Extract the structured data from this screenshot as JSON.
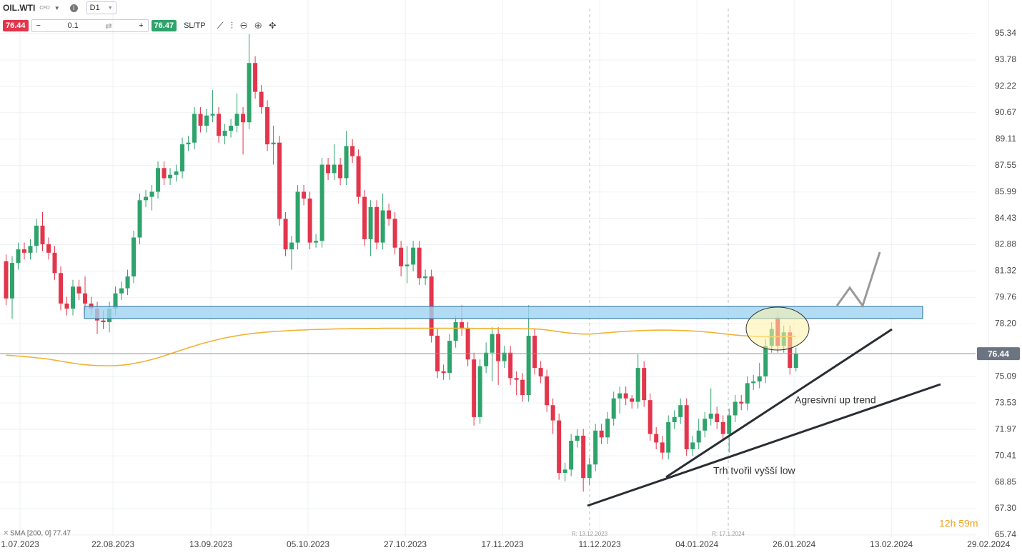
{
  "toolbar": {
    "symbol": "OIL.WTI",
    "instrument_type": "CFD",
    "timeframe": "D1",
    "sell_price": "76.44",
    "volume": "0.1",
    "buy_price": "76.47",
    "sl_tp": "SL/TP"
  },
  "chart_data": {
    "type": "candlestick",
    "candles": [
      [
        81.9,
        82.3,
        79.3,
        79.7
      ],
      [
        79.7,
        82.2,
        78.5,
        81.8
      ],
      [
        81.8,
        83.0,
        81.4,
        82.6
      ],
      [
        82.6,
        83.0,
        82.0,
        82.4
      ],
      [
        82.4,
        83.2,
        82.0,
        82.8
      ],
      [
        82.8,
        84.4,
        82.4,
        84.0
      ],
      [
        84.0,
        84.8,
        82.5,
        82.9
      ],
      [
        82.9,
        83.3,
        82.0,
        82.4
      ],
      [
        82.4,
        82.8,
        80.8,
        81.2
      ],
      [
        81.2,
        81.6,
        79.0,
        79.4
      ],
      [
        79.4,
        79.8,
        78.7,
        79.1
      ],
      [
        79.1,
        80.8,
        78.7,
        80.4
      ],
      [
        80.4,
        80.8,
        79.6,
        80.0
      ],
      [
        80.0,
        81.0,
        79.0,
        79.4
      ],
      [
        79.4,
        79.8,
        78.7,
        79.1
      ],
      [
        79.1,
        79.5,
        77.6,
        78.4
      ],
      [
        78.4,
        79.0,
        77.9,
        78.3
      ],
      [
        78.3,
        79.5,
        77.7,
        79.1
      ],
      [
        79.1,
        80.4,
        78.7,
        80.0
      ],
      [
        80.0,
        80.7,
        79.6,
        80.3
      ],
      [
        80.3,
        81.4,
        79.9,
        81.0
      ],
      [
        81.0,
        83.7,
        80.6,
        83.3
      ],
      [
        83.3,
        85.9,
        82.9,
        85.5
      ],
      [
        85.5,
        86.1,
        85.1,
        85.7
      ],
      [
        85.7,
        86.4,
        84.9,
        86.0
      ],
      [
        86.0,
        87.8,
        85.6,
        87.4
      ],
      [
        87.4,
        87.8,
        86.4,
        86.8
      ],
      [
        86.8,
        87.4,
        86.4,
        87.0
      ],
      [
        87.0,
        87.6,
        86.6,
        87.2
      ],
      [
        87.2,
        89.2,
        86.8,
        88.8
      ],
      [
        88.8,
        89.3,
        88.4,
        88.9
      ],
      [
        88.9,
        91.0,
        88.5,
        90.6
      ],
      [
        90.6,
        91.0,
        89.5,
        89.9
      ],
      [
        89.9,
        90.9,
        89.5,
        90.5
      ],
      [
        90.5,
        92.0,
        90.1,
        90.6
      ],
      [
        90.6,
        91.0,
        88.9,
        89.3
      ],
      [
        89.3,
        90.0,
        88.8,
        89.6
      ],
      [
        89.6,
        90.3,
        89.2,
        89.9
      ],
      [
        89.9,
        91.8,
        89.5,
        90.6
      ],
      [
        90.6,
        91.0,
        88.2,
        90.1
      ],
      [
        90.1,
        95.3,
        89.7,
        93.6
      ],
      [
        93.6,
        94.0,
        91.5,
        91.9
      ],
      [
        91.9,
        92.3,
        90.6,
        91.0
      ],
      [
        91.0,
        91.4,
        88.4,
        88.8
      ],
      [
        88.8,
        89.9,
        87.6,
        88.9
      ],
      [
        88.9,
        89.3,
        84.0,
        84.4
      ],
      [
        84.4,
        84.8,
        82.2,
        82.6
      ],
      [
        82.6,
        83.4,
        81.4,
        83.0
      ],
      [
        83.0,
        86.4,
        82.6,
        86.0
      ],
      [
        86.0,
        86.4,
        85.2,
        85.6
      ],
      [
        85.6,
        86.0,
        82.6,
        83.0
      ],
      [
        83.0,
        83.5,
        82.7,
        83.1
      ],
      [
        83.1,
        88.0,
        82.7,
        87.6
      ],
      [
        87.6,
        88.0,
        86.7,
        87.1
      ],
      [
        87.1,
        88.8,
        86.7,
        87.6
      ],
      [
        87.6,
        88.0,
        86.4,
        86.8
      ],
      [
        86.8,
        89.6,
        86.4,
        88.7
      ],
      [
        88.7,
        89.1,
        87.7,
        88.1
      ],
      [
        88.1,
        88.5,
        85.3,
        85.7
      ],
      [
        85.7,
        86.1,
        82.8,
        83.2
      ],
      [
        83.2,
        85.5,
        82.2,
        85.1
      ],
      [
        85.1,
        85.5,
        82.6,
        83.0
      ],
      [
        83.0,
        85.9,
        82.6,
        84.9
      ],
      [
        84.9,
        85.3,
        84.0,
        84.4
      ],
      [
        84.4,
        84.8,
        82.3,
        82.7
      ],
      [
        82.7,
        83.1,
        81.0,
        81.6
      ],
      [
        81.6,
        82.8,
        80.6,
        81.7
      ],
      [
        81.7,
        83.1,
        81.3,
        82.7
      ],
      [
        82.7,
        83.1,
        80.5,
        80.9
      ],
      [
        80.9,
        81.4,
        80.5,
        81.0
      ],
      [
        81.0,
        81.4,
        77.1,
        77.5
      ],
      [
        77.5,
        77.9,
        75.0,
        75.4
      ],
      [
        75.4,
        75.8,
        74.9,
        75.3
      ],
      [
        75.3,
        77.6,
        74.9,
        77.2
      ],
      [
        77.2,
        78.7,
        76.8,
        78.3
      ],
      [
        78.3,
        79.3,
        77.5,
        77.9
      ],
      [
        77.9,
        78.3,
        75.7,
        76.1
      ],
      [
        76.1,
        76.5,
        72.2,
        72.7
      ],
      [
        72.7,
        76.1,
        72.3,
        75.7
      ],
      [
        75.7,
        77.1,
        75.3,
        76.5
      ],
      [
        76.5,
        78.0,
        74.8,
        77.6
      ],
      [
        77.6,
        78.0,
        74.6,
        76.0
      ],
      [
        76.0,
        76.9,
        75.6,
        76.5
      ],
      [
        76.5,
        76.9,
        74.6,
        75.0
      ],
      [
        75.0,
        75.4,
        74.0,
        74.9
      ],
      [
        74.9,
        75.3,
        73.6,
        74.0
      ],
      [
        74.0,
        79.3,
        73.6,
        77.5
      ],
      [
        77.5,
        77.9,
        75.2,
        75.6
      ],
      [
        75.6,
        76.0,
        74.7,
        75.1
      ],
      [
        75.1,
        75.5,
        73.0,
        73.4
      ],
      [
        73.4,
        73.8,
        71.7,
        72.5
      ],
      [
        72.5,
        72.9,
        69.0,
        69.4
      ],
      [
        69.4,
        70.0,
        68.9,
        69.6
      ],
      [
        69.6,
        71.7,
        69.2,
        71.3
      ],
      [
        71.3,
        72.0,
        70.9,
        71.6
      ],
      [
        71.6,
        72.0,
        68.3,
        69.1
      ],
      [
        69.1,
        70.3,
        68.7,
        69.9
      ],
      [
        69.9,
        72.3,
        69.5,
        71.9
      ],
      [
        71.9,
        72.3,
        71.1,
        71.5
      ],
      [
        71.5,
        73.0,
        71.1,
        72.6
      ],
      [
        72.6,
        74.2,
        72.2,
        73.8
      ],
      [
        73.8,
        74.5,
        72.9,
        74.1
      ],
      [
        74.1,
        74.5,
        73.4,
        73.8
      ],
      [
        73.8,
        74.0,
        73.2,
        73.6
      ],
      [
        73.6,
        76.4,
        73.2,
        75.6
      ],
      [
        75.6,
        76.0,
        73.3,
        73.7
      ],
      [
        73.7,
        74.1,
        71.3,
        71.7
      ],
      [
        71.7,
        72.1,
        70.8,
        71.2
      ],
      [
        71.2,
        71.6,
        70.2,
        70.6
      ],
      [
        70.6,
        72.8,
        70.2,
        72.4
      ],
      [
        72.4,
        73.1,
        72.0,
        72.7
      ],
      [
        72.7,
        73.8,
        72.3,
        73.4
      ],
      [
        73.4,
        73.8,
        70.4,
        70.8
      ],
      [
        70.8,
        71.6,
        70.4,
        71.2
      ],
      [
        71.2,
        72.6,
        70.8,
        71.9
      ],
      [
        71.9,
        73.0,
        71.5,
        72.6
      ],
      [
        72.6,
        74.4,
        72.2,
        72.9
      ],
      [
        72.9,
        73.3,
        72.0,
        72.4
      ],
      [
        72.4,
        72.8,
        71.3,
        71.7
      ],
      [
        71.7,
        73.2,
        70.6,
        72.8
      ],
      [
        72.8,
        74.0,
        72.4,
        73.6
      ],
      [
        73.6,
        74.0,
        73.1,
        73.5
      ],
      [
        73.5,
        75.1,
        73.1,
        74.7
      ],
      [
        74.7,
        75.2,
        74.3,
        74.8
      ],
      [
        74.8,
        75.9,
        74.4,
        75.1
      ],
      [
        75.1,
        77.3,
        74.7,
        76.9
      ],
      [
        76.9,
        78.3,
        76.5,
        77.9
      ],
      [
        78.6,
        79.0,
        76.5,
        76.9
      ],
      [
        76.9,
        78.1,
        76.5,
        77.7
      ],
      [
        77.7,
        78.1,
        75.2,
        75.6
      ],
      [
        75.6,
        76.8,
        75.4,
        76.44
      ]
    ],
    "up_color": "#2ea36b",
    "down_color": "#e3354b",
    "indicator": {
      "name": "SMA [200, 0] 77.47",
      "color": "#f2b233",
      "values": [
        76.35,
        76.33,
        76.3,
        76.27,
        76.24,
        76.2,
        76.16,
        76.12,
        76.06,
        76.0,
        75.94,
        75.88,
        75.83,
        75.79,
        75.76,
        75.74,
        75.73,
        75.73,
        75.74,
        75.76,
        75.8,
        75.86,
        75.93,
        76.01,
        76.1,
        76.2,
        76.31,
        76.43,
        76.55,
        76.67,
        76.79,
        76.9,
        77.01,
        77.11,
        77.2,
        77.29,
        77.37,
        77.44,
        77.5,
        77.56,
        77.61,
        77.65,
        77.69,
        77.72,
        77.75,
        77.77,
        77.79,
        77.81,
        77.83,
        77.84,
        77.86,
        77.87,
        77.88,
        77.89,
        77.9,
        77.91,
        77.91,
        77.92,
        77.92,
        77.93,
        77.93,
        77.93,
        77.94,
        77.94,
        77.94,
        77.94,
        77.94,
        77.94,
        77.94,
        77.94,
        77.94,
        77.94,
        77.94,
        77.94,
        77.94,
        77.94,
        77.94,
        77.93,
        77.93,
        77.93,
        77.93,
        77.92,
        77.92,
        77.92,
        77.92,
        77.91,
        77.91,
        77.91,
        77.88,
        77.84,
        77.79,
        77.74,
        77.69,
        77.65,
        77.62,
        77.6,
        77.6,
        77.62,
        77.65,
        77.68,
        77.71,
        77.74,
        77.76,
        77.78,
        77.8,
        77.81,
        77.82,
        77.83,
        77.83,
        77.83,
        77.82,
        77.81,
        77.8,
        77.78,
        77.76,
        77.73,
        77.7,
        77.66,
        77.62,
        77.58,
        77.54,
        77.51,
        77.49,
        77.47,
        77.45,
        77.44,
        77.44,
        77.44,
        77.45,
        77.46,
        77.47
      ]
    },
    "last_price": 76.44,
    "xlim": [
      -1,
      167.2
    ],
    "xticks": [
      {
        "value": 2.3,
        "label": "1.07.2023"
      },
      {
        "value": 17.6,
        "label": "22.08.2023"
      },
      {
        "value": 33.7,
        "label": "13.09.2023"
      },
      {
        "value": 49.7,
        "label": "05.10.2023"
      },
      {
        "value": 65.7,
        "label": "27.10.2023"
      },
      {
        "value": 81.7,
        "label": "17.11.2023"
      },
      {
        "value": 97.7,
        "label": "11.12.2023"
      },
      {
        "value": 113.7,
        "label": "04.01.2024"
      },
      {
        "value": 129.7,
        "label": "26.01.2024"
      },
      {
        "value": 145.7,
        "label": "13.02.2024"
      },
      {
        "value": 161.7,
        "label": "29.02.2024"
      }
    ],
    "ylim": [
      65.61,
      97.32
    ],
    "yticks": [
      95.34,
      93.78,
      92.22,
      90.67,
      89.11,
      87.55,
      85.99,
      84.43,
      82.88,
      81.32,
      79.76,
      {
        "value": 78.2,
        "label": "78.20"
      },
      75.09,
      73.53,
      71.97,
      70.41,
      68.85,
      {
        "value": 67.3,
        "label": "67.30"
      },
      65.74
    ],
    "grid": true,
    "annotations": {
      "trend_label": "Agresivní up trend",
      "low_label": "Trh tvořil vyšší low",
      "release_1": "R: 13.12.2023",
      "release_2": "R: 17.1.2024"
    },
    "timer": "12h 59m"
  }
}
